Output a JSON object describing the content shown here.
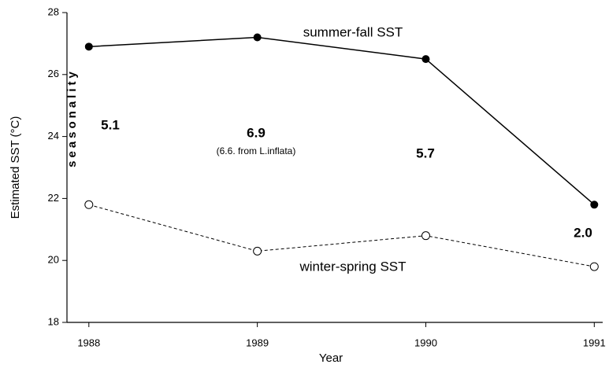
{
  "chart_data": {
    "type": "line",
    "xlabel": "Year",
    "ylabel": "Estimated SST (°C)",
    "x": [
      1988,
      1989,
      1990,
      1991
    ],
    "series": [
      {
        "name": "summer-fall SST",
        "color": "#000000",
        "values": [
          26.9,
          27.2,
          26.5,
          21.8
        ]
      },
      {
        "name": "winter-spring SST",
        "color": "#000000",
        "values": [
          21.8,
          20.3,
          20.8,
          19.8
        ]
      }
    ],
    "xlim": [
      1987.87,
      1991.05
    ],
    "xticks": [
      1988,
      1989,
      1990,
      1991
    ],
    "ylim": [
      18,
      28
    ],
    "yticks": [
      18,
      20,
      22,
      24,
      26,
      28
    ],
    "annotations": [
      "seasonality",
      "5.1",
      "6.9",
      "(6.6. from L.inflata)",
      "5.7",
      "2.0"
    ]
  }
}
